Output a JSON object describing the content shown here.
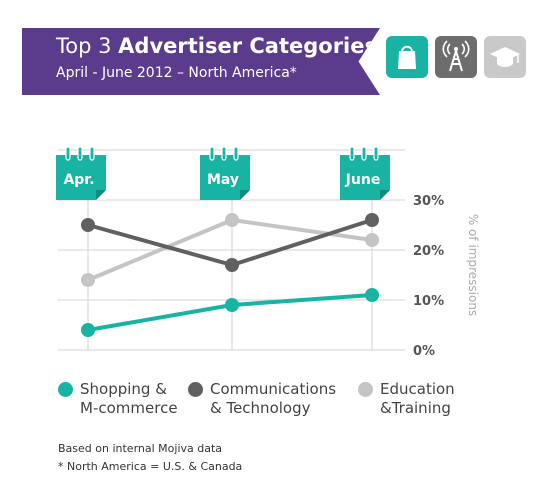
{
  "header": {
    "title_prefix": "Top 3 ",
    "title_bold": "Advertiser Categories",
    "subtitle": "April - June 2012 – North America*"
  },
  "icons": [
    {
      "name": "shopping-bag-icon",
      "color": "#19b3a3"
    },
    {
      "name": "cell-tower-icon",
      "color": "#6d6d6d"
    },
    {
      "name": "graduation-cap-icon",
      "color": "#c9c9c9"
    }
  ],
  "chart_data": {
    "type": "line",
    "categories": [
      "Apr.",
      "May",
      "June"
    ],
    "series": [
      {
        "name": "Shopping & M-commerce",
        "color": "#19b3a3",
        "values": [
          4,
          9,
          11
        ]
      },
      {
        "name": "Communications & Technology",
        "color": "#606060",
        "values": [
          25,
          17,
          26
        ]
      },
      {
        "name": "Education &Training",
        "color": "#c4c4c4",
        "values": [
          14,
          26,
          22
        ]
      }
    ],
    "yticks": [
      "0%",
      "10%",
      "20%",
      "30%"
    ],
    "ylim": [
      0,
      30
    ],
    "ylabel": "% of impressions",
    "grid": true,
    "legend_position": "bottom"
  },
  "legend": [
    {
      "line1": "Shopping &",
      "line2": "M-commerce",
      "color": "#19b3a3"
    },
    {
      "line1": "Communications",
      "line2": "& Technology",
      "color": "#606060"
    },
    {
      "line1": "Education",
      "line2": "&Training",
      "color": "#c4c4c4"
    }
  ],
  "footnotes": {
    "source": "Based on internal Mojiva data",
    "note": "* North America = U.S. & Canada"
  }
}
